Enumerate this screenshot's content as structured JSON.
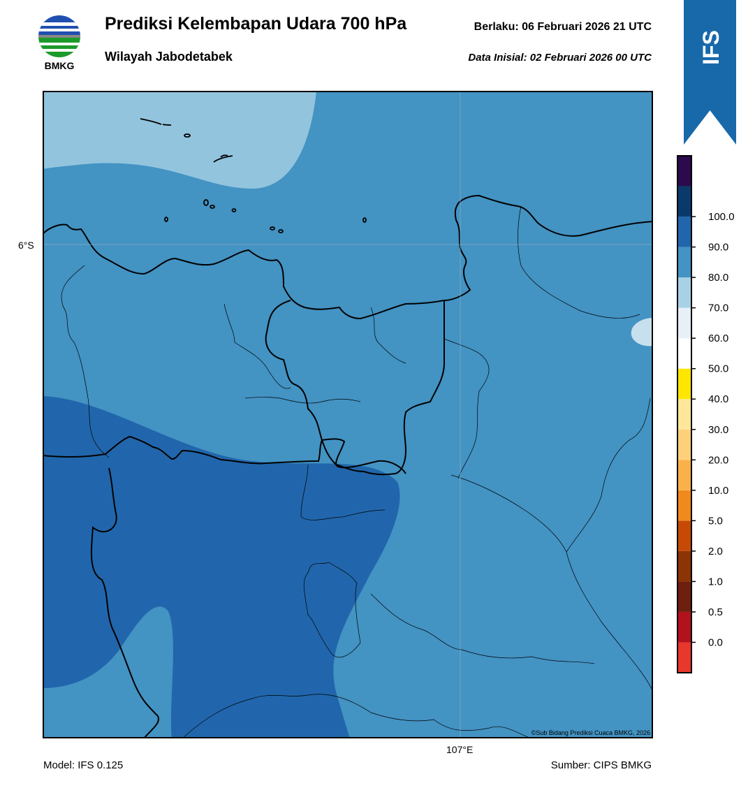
{
  "header": {
    "title": "Prediksi Kelembapan Udara 700 hPa",
    "region": "Wilayah Jabodetabek",
    "valid": "Berlaku:  06 Februari 2026 21 UTC",
    "init": "Data Inisial:  02 Februari 2026 00 UTC",
    "logo_text": "BMKG",
    "model_badge": "IFS"
  },
  "map": {
    "lat_label": "6°S",
    "lon_label": "107°E",
    "copyright": "©Sub Bidang Prediksi Cuaca BMKG, 2026",
    "colors": {
      "ocean_light": "#92c4de",
      "mid_blue": "#4393c3",
      "dark_blue": "#2166ac",
      "pale": "#d1e5f0"
    }
  },
  "footer": {
    "model": "Model: IFS 0.125",
    "source": "Sumber: CIPS BMKG"
  },
  "colorbar": {
    "ticks": [
      "0.0",
      "0.5",
      "1.0",
      "2.0",
      "5.0",
      "10.0",
      "20.0",
      "30.0",
      "40.0",
      "50.0",
      "60.0",
      "70.0",
      "80.0",
      "90.0",
      "100.0"
    ],
    "colors": [
      "#e8372b",
      "#b2121e",
      "#6e1f10",
      "#8b3405",
      "#c64a06",
      "#f08a1c",
      "#fbb04a",
      "#fed07a",
      "#ffe79a",
      "#ffe600",
      "#ffffff",
      "#e8f0f7",
      "#a8d1e6",
      "#4393c3",
      "#2166ac",
      "#0a3a6c",
      "#2b0a4d"
    ]
  }
}
